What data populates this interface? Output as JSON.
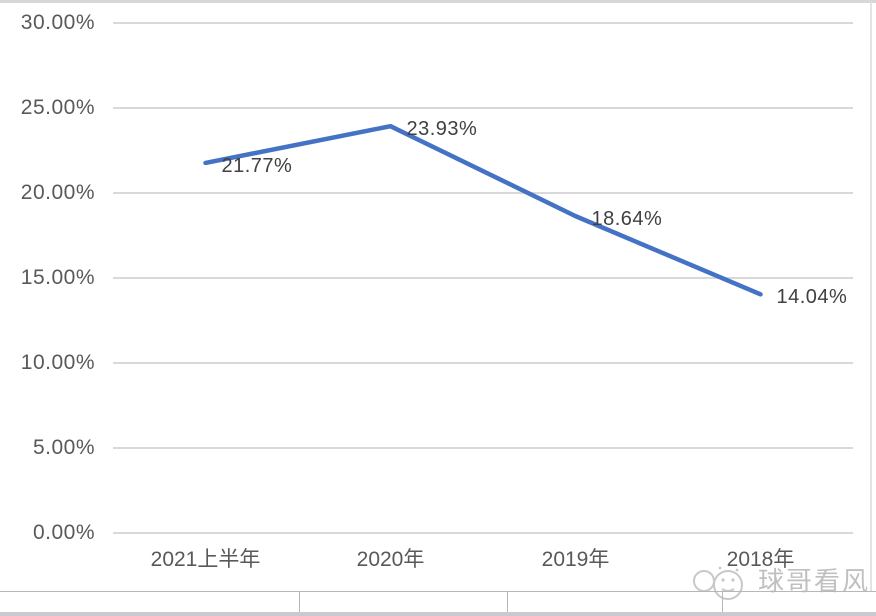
{
  "chart_data": {
    "type": "line",
    "categories": [
      "2021上半年",
      "2020年",
      "2019年",
      "2018年"
    ],
    "values": [
      21.77,
      23.93,
      18.64,
      14.04
    ],
    "data_labels": [
      "21.77%",
      "23.93%",
      "18.64%",
      "14.04%"
    ],
    "y_ticks": [
      {
        "label": "30.00%",
        "value": 30
      },
      {
        "label": "25.00%",
        "value": 25
      },
      {
        "label": "20.00%",
        "value": 20
      },
      {
        "label": "15.00%",
        "value": 15
      },
      {
        "label": "10.00%",
        "value": 10
      },
      {
        "label": "5.00%",
        "value": 5
      },
      {
        "label": "0.00%",
        "value": 0
      }
    ],
    "ylim": [
      0,
      30
    ],
    "title": "",
    "xlabel": "",
    "ylabel": "",
    "legend_position": "none",
    "grid": "horizontal",
    "line_color": "#4472C4",
    "grid_color": "#d9d9d9",
    "label_color": "#404040",
    "tick_color": "#595959"
  },
  "watermark": {
    "text": "球哥看风",
    "icon": "mascot-face-icon"
  }
}
